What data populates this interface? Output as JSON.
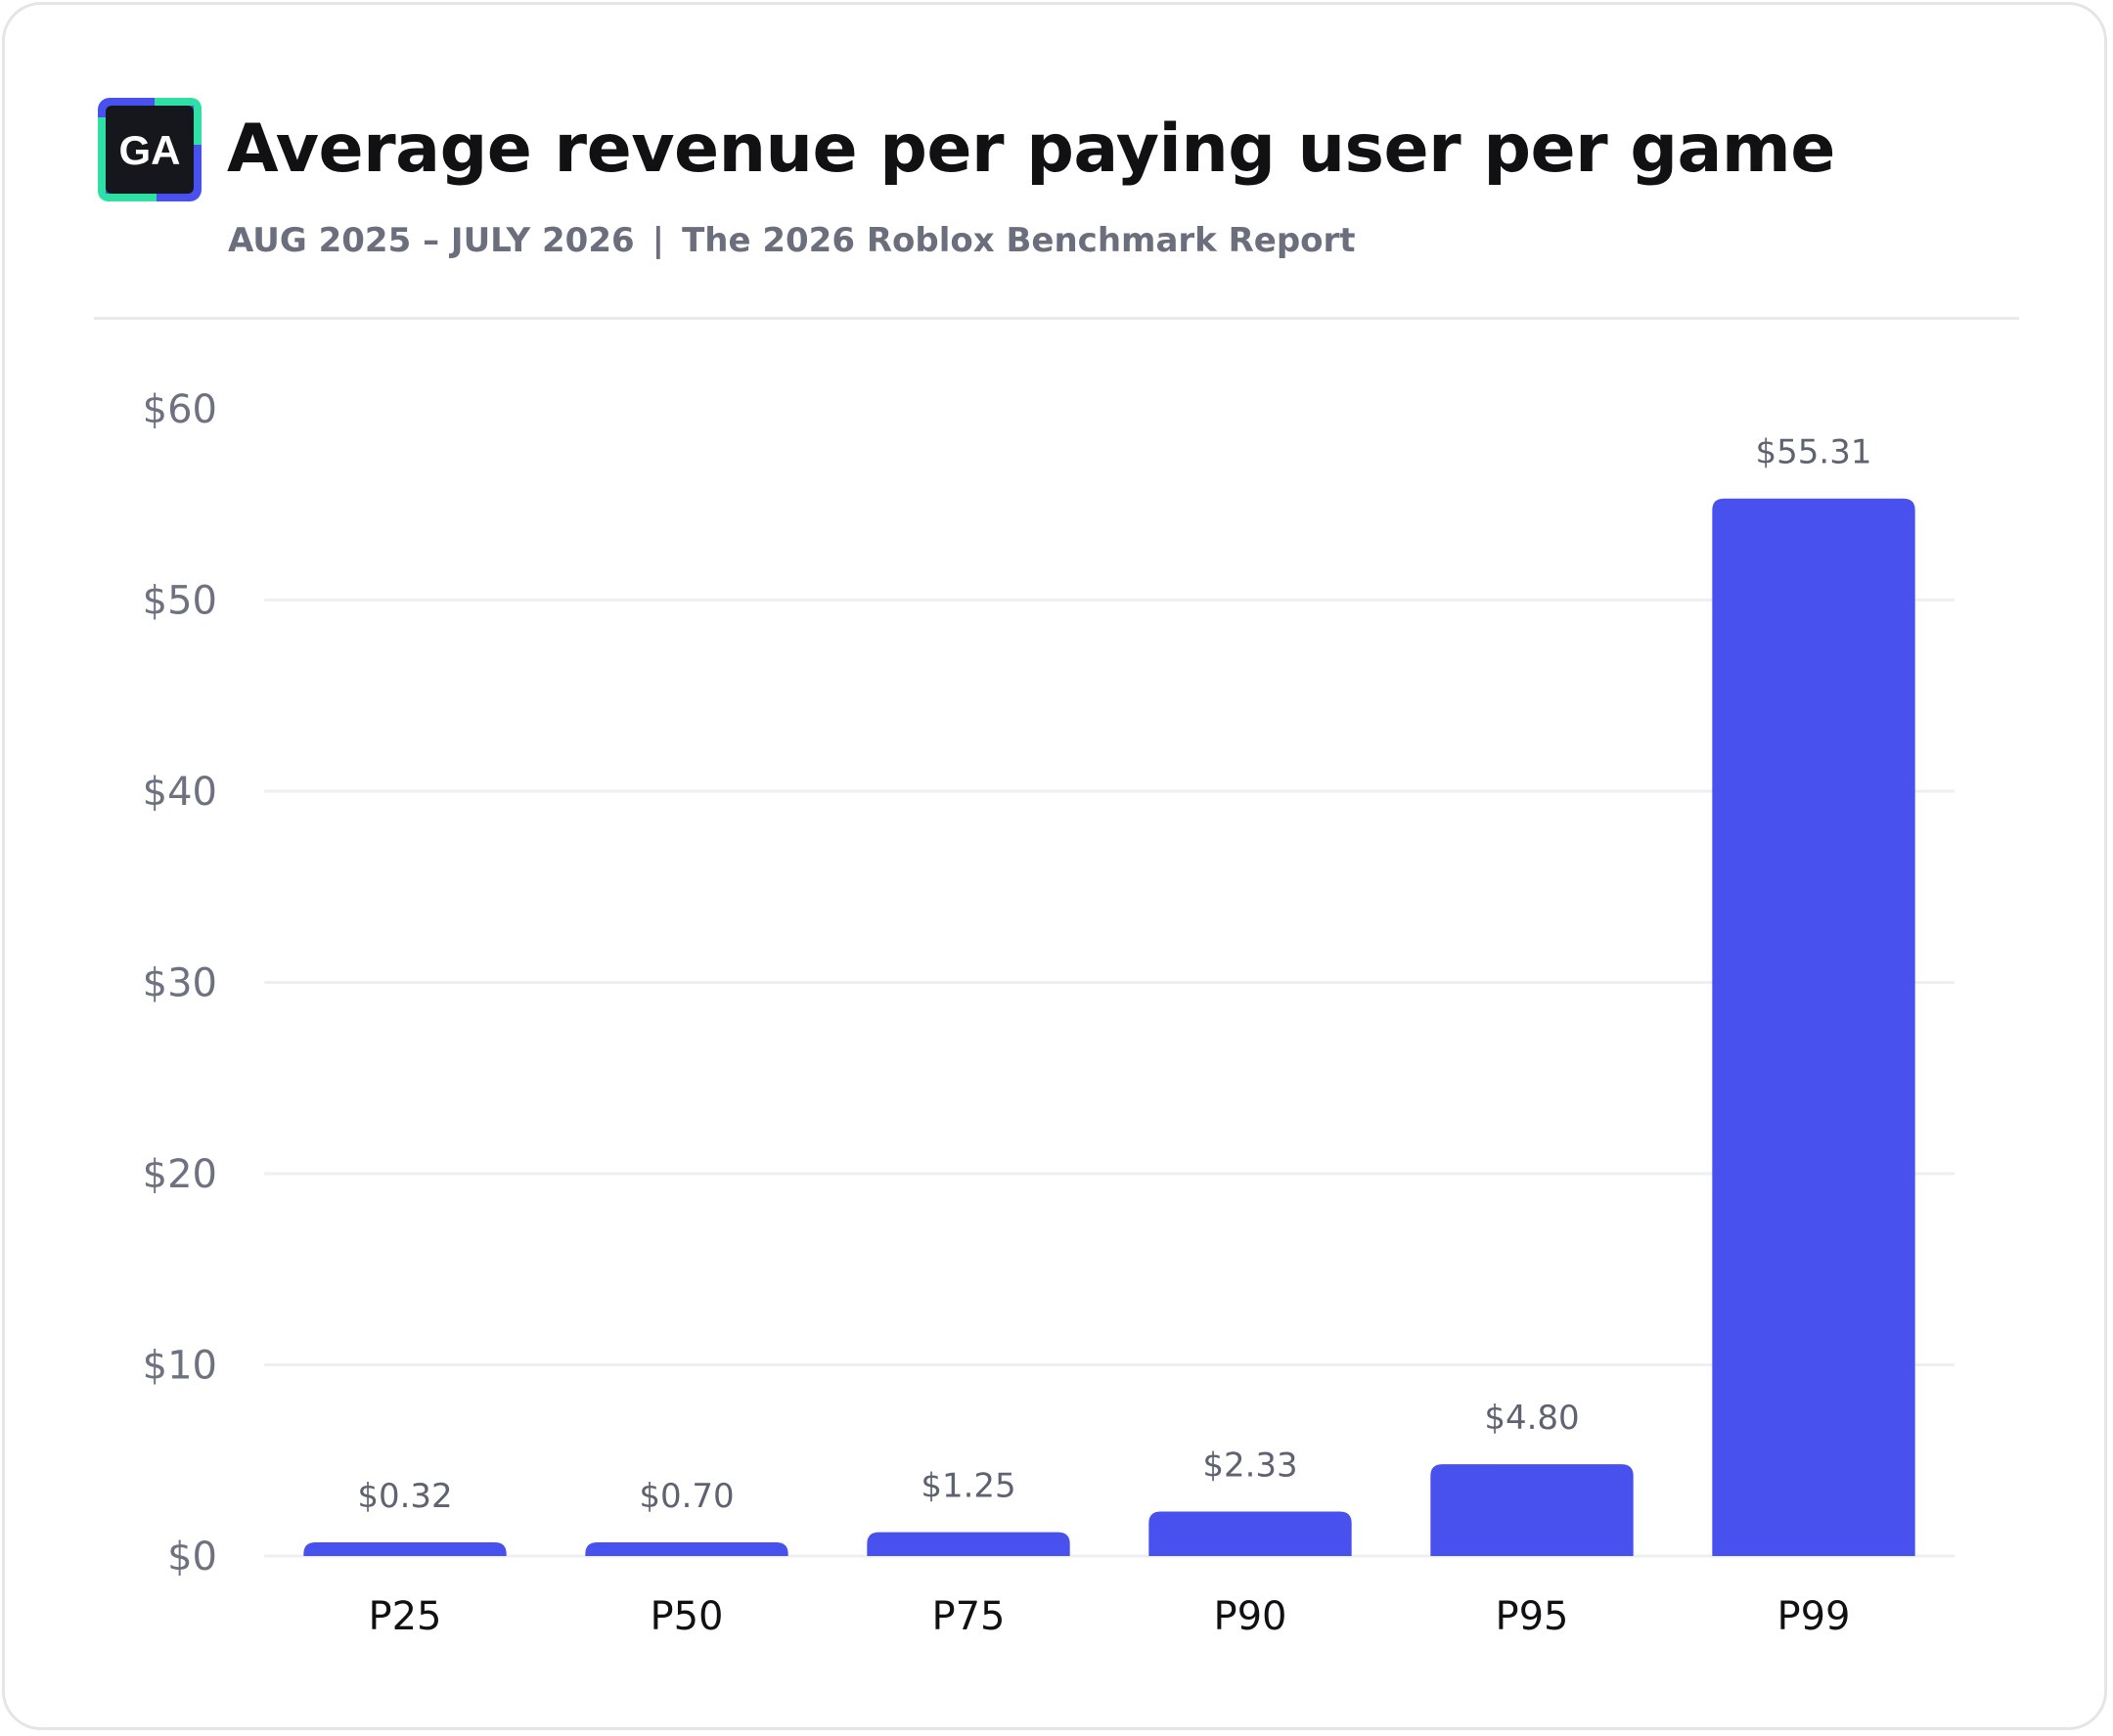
{
  "header": {
    "logo_text": "GA",
    "title": "Average revenue per paying user per game",
    "period": "AUG 2025 – JULY 2026",
    "separator": "|",
    "report": "The 2026 Roblox Benchmark Report"
  },
  "colors": {
    "bar": "#4851ee",
    "logo_bg": "#16171c",
    "logo_green": "#2fe0a4",
    "logo_blue": "#4851ee",
    "grid": "#eeeff2"
  },
  "chart_data": {
    "type": "bar",
    "categories": [
      "P25",
      "P50",
      "P75",
      "P90",
      "P95",
      "P99"
    ],
    "values": [
      0.32,
      0.7,
      1.25,
      2.33,
      4.8,
      55.31
    ],
    "value_labels": [
      "$0.32",
      "$0.70",
      "$1.25",
      "$2.33",
      "$4.80",
      "$55.31"
    ],
    "title": "Average revenue per paying user per game",
    "xlabel": "",
    "ylabel": "",
    "ylim": [
      0,
      60
    ],
    "yticks": [
      0,
      10,
      20,
      30,
      40,
      50,
      60
    ],
    "ytick_labels": [
      "$0",
      "$10",
      "$20",
      "$30",
      "$40",
      "$50",
      "$60"
    ],
    "grid": true,
    "legend": "none"
  }
}
